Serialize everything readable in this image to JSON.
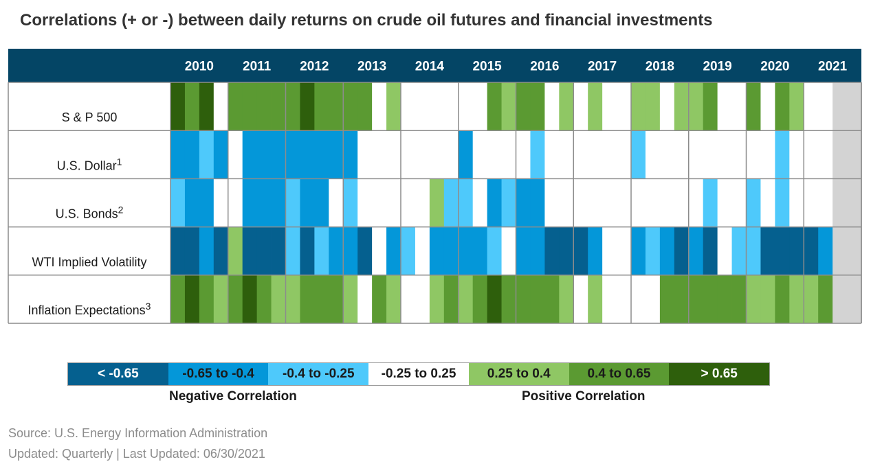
{
  "title": "Correlations (+ or -) between daily returns on crude oil futures and financial investments",
  "chart_data": {
    "type": "heatmap",
    "title": "Correlations (+ or -) between daily returns on crude oil futures and financial investments",
    "years": [
      "2010",
      "2011",
      "2012",
      "2013",
      "2014",
      "2015",
      "2016",
      "2017",
      "2018",
      "2019",
      "2020",
      "2021"
    ],
    "quarters_per_year": 4,
    "rows": [
      {
        "label": "S & P 500",
        "sup": "",
        "values": [
          "gt065",
          "04to065",
          "gt065",
          "none",
          "04to065",
          "04to065",
          "04to065",
          "04to065",
          "04to065",
          "gt065",
          "04to065",
          "04to065",
          "04to065",
          "04to065",
          "none",
          "025to04",
          "none",
          "none",
          "none",
          "none",
          "none",
          "none",
          "04to065",
          "025to04",
          "04to065",
          "04to065",
          "none",
          "025to04",
          "none",
          "025to04",
          "none",
          "none",
          "025to04",
          "025to04",
          "none",
          "025to04",
          "025to04",
          "04to065",
          "none",
          "none",
          "04to065",
          "none",
          "04to065",
          "025to04",
          "none",
          "none",
          "na",
          "na"
        ]
      },
      {
        "label": "U.S. Dollar",
        "sup": "1",
        "values": [
          "m065to04",
          "m065to04",
          "m04to025",
          "m065to04",
          "none",
          "m065to04",
          "m065to04",
          "m065to04",
          "m065to04",
          "m065to04",
          "m065to04",
          "m065to04",
          "m065to04",
          "none",
          "none",
          "none",
          "none",
          "none",
          "none",
          "none",
          "m065to04",
          "none",
          "none",
          "none",
          "none",
          "m04to025",
          "none",
          "none",
          "none",
          "none",
          "none",
          "none",
          "m04to025",
          "none",
          "none",
          "none",
          "none",
          "none",
          "none",
          "none",
          "none",
          "none",
          "m04to025",
          "none",
          "none",
          "none",
          "na",
          "na"
        ]
      },
      {
        "label": "U.S. Bonds",
        "sup": "2",
        "values": [
          "m04to025",
          "m065to04",
          "m065to04",
          "none",
          "none",
          "m065to04",
          "m065to04",
          "m065to04",
          "m04to025",
          "m065to04",
          "m065to04",
          "none",
          "m04to025",
          "none",
          "none",
          "none",
          "none",
          "none",
          "025to04",
          "m04to025",
          "m04to025",
          "none",
          "m065to04",
          "m04to025",
          "m065to04",
          "m065to04",
          "none",
          "none",
          "none",
          "none",
          "none",
          "none",
          "none",
          "none",
          "none",
          "none",
          "none",
          "m04to025",
          "none",
          "none",
          "m04to025",
          "none",
          "m04to025",
          "none",
          "none",
          "none",
          "na",
          "na"
        ]
      },
      {
        "label": "WTI Implied Volatility",
        "sup": "",
        "values": [
          "lt065",
          "lt065",
          "m065to04",
          "lt065",
          "025to04",
          "lt065",
          "lt065",
          "lt065",
          "m04to025",
          "lt065",
          "m04to025",
          "m065to04",
          "m065to04",
          "lt065",
          "none",
          "m065to04",
          "m04to025",
          "none",
          "m065to04",
          "m065to04",
          "m065to04",
          "m065to04",
          "m04to025",
          "none",
          "m065to04",
          "m065to04",
          "lt065",
          "lt065",
          "lt065",
          "m065to04",
          "none",
          "none",
          "m065to04",
          "m04to025",
          "m065to04",
          "lt065",
          "m065to04",
          "lt065",
          "none",
          "m04to025",
          "m04to025",
          "lt065",
          "lt065",
          "lt065",
          "lt065",
          "m065to04",
          "na",
          "na"
        ]
      },
      {
        "label": "Inflation Expectations",
        "sup": "3",
        "values": [
          "04to065",
          "gt065",
          "04to065",
          "025to04",
          "04to065",
          "gt065",
          "04to065",
          "025to04",
          "025to04",
          "04to065",
          "04to065",
          "04to065",
          "025to04",
          "none",
          "04to065",
          "025to04",
          "none",
          "none",
          "025to04",
          "04to065",
          "025to04",
          "04to065",
          "gt065",
          "04to065",
          "04to065",
          "04to065",
          "04to065",
          "025to04",
          "none",
          "025to04",
          "none",
          "none",
          "none",
          "none",
          "04to065",
          "04to065",
          "04to065",
          "04to065",
          "04to065",
          "04to065",
          "025to04",
          "025to04",
          "04to065",
          "025to04",
          "025to04",
          "04to065",
          "na",
          "na"
        ]
      }
    ],
    "categories": [
      {
        "key": "lt065",
        "label": "< -0.65",
        "color": "#05608f"
      },
      {
        "key": "m065to04",
        "label": "-0.65 to -0.4",
        "color": "#0497d9"
      },
      {
        "key": "m04to025",
        "label": "-0.4 to -0.25",
        "color": "#4ec9fb"
      },
      {
        "key": "none",
        "label": "-0.25 to 0.25",
        "color": "#ffffff"
      },
      {
        "key": "025to04",
        "label": "0.25 to 0.4",
        "color": "#8fc764"
      },
      {
        "key": "04to065",
        "label": "0.4 to 0.65",
        "color": "#5b9a32"
      },
      {
        "key": "gt065",
        "label": "> 0.65",
        "color": "#2e5f0c"
      }
    ]
  },
  "colors": {
    "header": "#044565",
    "na": "#d3d3d3",
    "grid": "#8c8c8c"
  },
  "legend": {
    "negative_label": "Negative Correlation",
    "positive_label": "Positive Correlation"
  },
  "footer": {
    "source": "Source: U.S. Energy Information Administration",
    "updated": "Updated: Quarterly | Last Updated: 06/30/2021"
  }
}
